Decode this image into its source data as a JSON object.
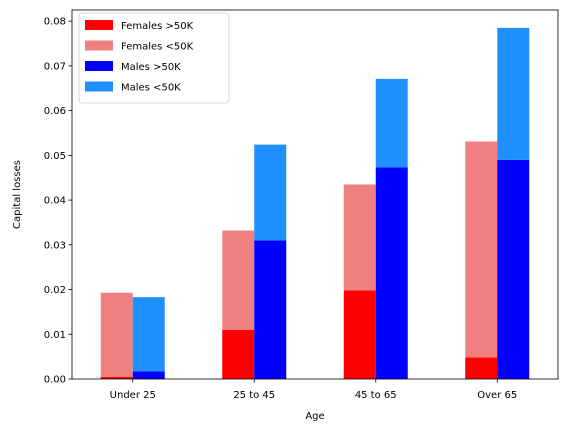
{
  "chart_data": {
    "type": "bar",
    "stacked": true,
    "grouped": true,
    "categories": [
      "Under 25",
      "25 to 45",
      "45 to 65",
      "Over 65"
    ],
    "xlabel": "Age",
    "ylabel": "Capital losses",
    "ylim": [
      0,
      0.0825
    ],
    "yticks": [
      "0.00",
      "0.01",
      "0.02",
      "0.03",
      "0.04",
      "0.05",
      "0.06",
      "0.07",
      "0.08"
    ],
    "grid": false,
    "legend_position": "top-left",
    "groups": [
      {
        "group": "Females",
        "series": [
          {
            "name": "Females >50K",
            "color": "#ff0000",
            "values": [
              0.0005,
              0.011,
              0.0198,
              0.0048
            ]
          },
          {
            "name": "Females <50K",
            "color": "#f08080",
            "values": [
              0.0188,
              0.0222,
              0.0237,
              0.0483
            ]
          }
        ]
      },
      {
        "group": "Males",
        "series": [
          {
            "name": "Males >50K",
            "color": "#0000ff",
            "values": [
              0.0017,
              0.031,
              0.0473,
              0.049
            ]
          },
          {
            "name": "Males <50K",
            "color": "#1e90ff",
            "values": [
              0.0166,
              0.0214,
              0.0198,
              0.0295
            ]
          }
        ]
      }
    ]
  }
}
